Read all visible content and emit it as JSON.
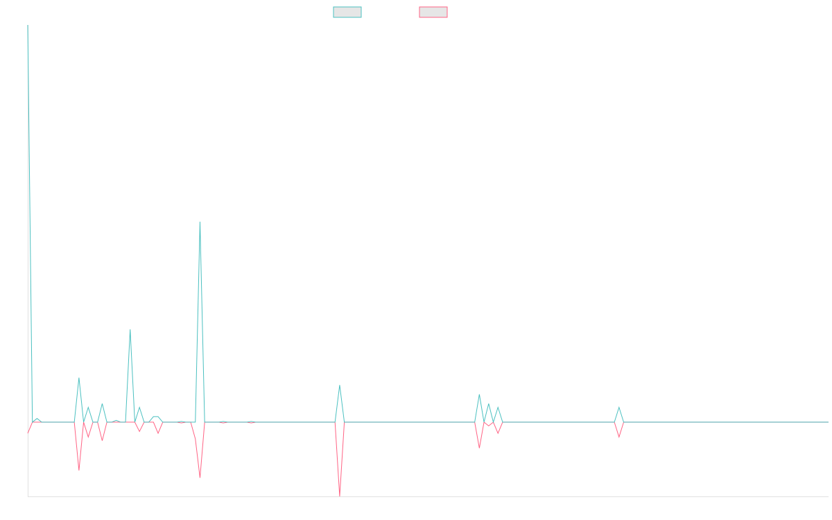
{
  "chart_data": {
    "type": "line",
    "title": "",
    "xlabel": "",
    "ylabel": "",
    "grid": false,
    "legend_position": "top-center",
    "x_count": 173,
    "ylim": [
      -20,
      107
    ],
    "series": [
      {
        "name": "",
        "color": "#4bc0c0",
        "points": [
          [
            0,
            107
          ],
          [
            1,
            0
          ],
          [
            2,
            1
          ],
          [
            3,
            0
          ],
          [
            10,
            0
          ],
          [
            11,
            12
          ],
          [
            12,
            0
          ],
          [
            13,
            4
          ],
          [
            14,
            0
          ],
          [
            15,
            0
          ],
          [
            16,
            5
          ],
          [
            17,
            0
          ],
          [
            18,
            0
          ],
          [
            19,
            0.5
          ],
          [
            20,
            0
          ],
          [
            21,
            0
          ],
          [
            22,
            25
          ],
          [
            23,
            0
          ],
          [
            24,
            4
          ],
          [
            25,
            0
          ],
          [
            26,
            0
          ],
          [
            27,
            1.5
          ],
          [
            28,
            1.5
          ],
          [
            29,
            0
          ],
          [
            32,
            0
          ],
          [
            33,
            0.2
          ],
          [
            34,
            0
          ],
          [
            35,
            0
          ],
          [
            36,
            0
          ],
          [
            37,
            54
          ],
          [
            38,
            0
          ],
          [
            41,
            0
          ],
          [
            42,
            0.2
          ],
          [
            43,
            0
          ],
          [
            47,
            0
          ],
          [
            48,
            0.2
          ],
          [
            49,
            0
          ],
          [
            66,
            0
          ],
          [
            67,
            10
          ],
          [
            68,
            0
          ],
          [
            96,
            0
          ],
          [
            97,
            7.5
          ],
          [
            98,
            0
          ],
          [
            99,
            5
          ],
          [
            100,
            0
          ],
          [
            101,
            4
          ],
          [
            102,
            0
          ],
          [
            126,
            0
          ],
          [
            127,
            4
          ],
          [
            128,
            0
          ],
          [
            172,
            0
          ]
        ]
      },
      {
        "name": "",
        "color": "#ff6384",
        "points": [
          [
            0,
            -3
          ],
          [
            1,
            0
          ],
          [
            2,
            0
          ],
          [
            3,
            0
          ],
          [
            10,
            0
          ],
          [
            11,
            -13
          ],
          [
            12,
            0
          ],
          [
            13,
            -4
          ],
          [
            14,
            0
          ],
          [
            15,
            0
          ],
          [
            16,
            -5
          ],
          [
            17,
            0
          ],
          [
            18,
            0
          ],
          [
            19,
            0
          ],
          [
            20,
            0
          ],
          [
            21,
            0
          ],
          [
            22,
            0
          ],
          [
            23,
            0
          ],
          [
            24,
            -2.5
          ],
          [
            25,
            0
          ],
          [
            26,
            0
          ],
          [
            27,
            0
          ],
          [
            28,
            -3
          ],
          [
            29,
            0
          ],
          [
            32,
            0
          ],
          [
            33,
            -0.2
          ],
          [
            34,
            0
          ],
          [
            35,
            0
          ],
          [
            36,
            -4.5
          ],
          [
            37,
            -15
          ],
          [
            38,
            0
          ],
          [
            41,
            0
          ],
          [
            42,
            -0.2
          ],
          [
            43,
            0
          ],
          [
            47,
            0
          ],
          [
            48,
            -0.2
          ],
          [
            49,
            0
          ],
          [
            66,
            0
          ],
          [
            67,
            -20
          ],
          [
            68,
            0
          ],
          [
            96,
            0
          ],
          [
            97,
            -7
          ],
          [
            98,
            0
          ],
          [
            99,
            -1
          ],
          [
            100,
            0
          ],
          [
            101,
            -3
          ],
          [
            102,
            0
          ],
          [
            126,
            0
          ],
          [
            127,
            -4
          ],
          [
            128,
            0
          ],
          [
            172,
            0
          ]
        ]
      }
    ]
  }
}
